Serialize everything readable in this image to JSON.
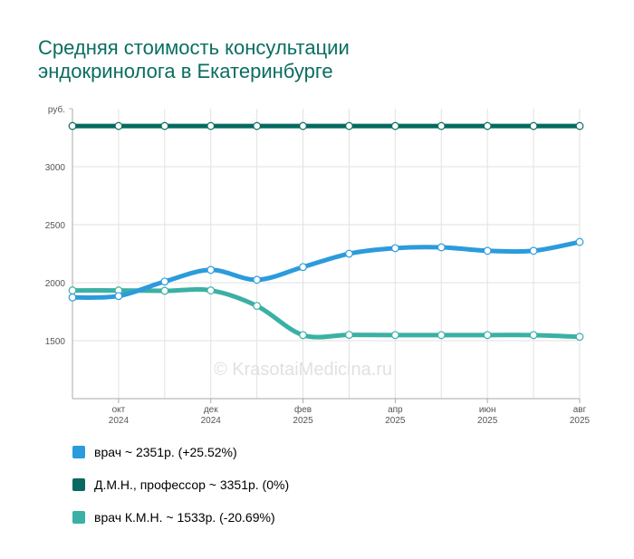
{
  "title_lines": [
    "Средняя стоимость консультации",
    "эндокринолога в Екатеринбурге"
  ],
  "watermark": "© KrasotaiMedicina.ru",
  "chart_data": {
    "type": "line",
    "title": "Средняя стоимость консультации эндокринолога в Екатеринбурге",
    "ylabel": "руб.",
    "xlabel": "",
    "ylim": [
      1000,
      3500
    ],
    "yticks": [
      1500,
      2000,
      2500,
      3000
    ],
    "x": [
      "2024-09",
      "2024-10",
      "2024-11",
      "2024-12",
      "2025-01",
      "2025-02",
      "2025-03",
      "2025-04",
      "2025-05",
      "2025-06",
      "2025-07",
      "2025-08"
    ],
    "xtick_labels": [
      {
        "x": "2024-10",
        "month": "окт",
        "year": "2024"
      },
      {
        "x": "2024-12",
        "month": "дек",
        "year": "2024"
      },
      {
        "x": "2025-02",
        "month": "фев",
        "year": "2025"
      },
      {
        "x": "2025-04",
        "month": "апр",
        "year": "2025"
      },
      {
        "x": "2025-06",
        "month": "июн",
        "year": "2025"
      },
      {
        "x": "2025-08",
        "month": "авг",
        "year": "2025"
      }
    ],
    "grid": true,
    "legend_position": "bottom",
    "series": [
      {
        "name": "врач",
        "legend_label": "врач ~ 2351р. (+25.52%)",
        "color": "#2b9bdc",
        "values": [
          1873,
          1885,
          2010,
          2110,
          2025,
          2135,
          2250,
          2298,
          2305,
          2275,
          2275,
          2351
        ]
      },
      {
        "name": "Д.М.Н., профессор",
        "legend_label": "Д.М.Н., профессор ~ 3351р. (0%)",
        "color": "#07695f",
        "values": [
          3351,
          3351,
          3351,
          3351,
          3351,
          3351,
          3351,
          3351,
          3351,
          3351,
          3351,
          3351
        ]
      },
      {
        "name": "врач К.М.Н.",
        "legend_label": "врач К.М.Н. ~ 1533р. (-20.69%)",
        "color": "#3bb0a4",
        "values": [
          1933,
          1933,
          1930,
          1933,
          1800,
          1548,
          1550,
          1548,
          1548,
          1548,
          1548,
          1533
        ]
      }
    ]
  }
}
